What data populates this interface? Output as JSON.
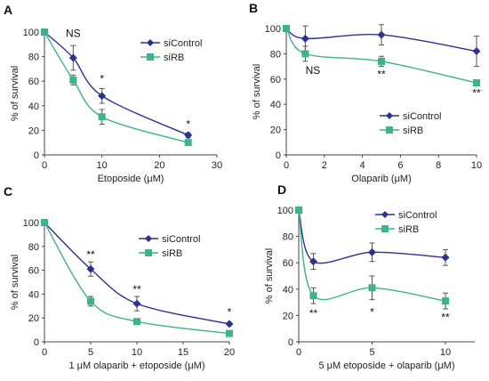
{
  "chart_data": [
    {
      "panel": "A",
      "type": "line",
      "xlabel": "Etoposide (μM)",
      "ylabel": "% of survival",
      "xlim": [
        0,
        30
      ],
      "ylim": [
        0,
        100
      ],
      "xticks": [
        0,
        10,
        20,
        30
      ],
      "yticks": [
        0,
        20,
        40,
        60,
        80,
        100
      ],
      "legend_position": "top-right",
      "series": [
        {
          "name": "siControl",
          "color": "#2e3192",
          "marker": "diamond",
          "x": [
            0,
            5,
            10,
            25
          ],
          "y": [
            100,
            79,
            48,
            16
          ],
          "err": [
            0,
            10,
            6,
            2
          ]
        },
        {
          "name": "siRB",
          "color": "#3cb38a",
          "marker": "square",
          "x": [
            0,
            5,
            10,
            25
          ],
          "y": [
            100,
            61,
            31,
            10
          ],
          "err": [
            0,
            4,
            6,
            1
          ]
        }
      ],
      "annotations": [
        {
          "text": "NS",
          "x": 5,
          "y": 96
        },
        {
          "text": "*",
          "x": 10,
          "y": 59
        },
        {
          "text": "*",
          "x": 25,
          "y": 22
        }
      ]
    },
    {
      "panel": "B",
      "type": "line",
      "xlabel": "Olaparib (μM)",
      "ylabel": "% of survival",
      "xlim": [
        0,
        10
      ],
      "ylim": [
        0,
        100
      ],
      "xticks": [
        0,
        2,
        4,
        6,
        8,
        10
      ],
      "yticks": [
        0,
        20,
        40,
        60,
        80,
        100
      ],
      "legend_position": "bottom-right",
      "series": [
        {
          "name": "siControl",
          "color": "#2e3192",
          "marker": "diamond",
          "x": [
            0,
            1,
            5,
            10
          ],
          "y": [
            100,
            92,
            95,
            82
          ],
          "err": [
            0,
            10,
            8,
            12
          ]
        },
        {
          "name": "siRB",
          "color": "#3cb38a",
          "marker": "square",
          "x": [
            0,
            1,
            5,
            10
          ],
          "y": [
            100,
            80,
            74,
            57
          ],
          "err": [
            0,
            6,
            4,
            2
          ]
        }
      ],
      "annotations": [
        {
          "text": "NS",
          "x": 1.4,
          "y": 64
        },
        {
          "text": "**",
          "x": 5,
          "y": 61
        },
        {
          "text": "**",
          "x": 10,
          "y": 46
        }
      ]
    },
    {
      "panel": "C",
      "type": "line",
      "xlabel": "1 μM olaparib + etoposide (μM)",
      "ylabel": "% of survival",
      "xlim": [
        0,
        20
      ],
      "ylim": [
        0,
        100
      ],
      "xticks": [
        0,
        5,
        10,
        15,
        20
      ],
      "yticks": [
        0,
        20,
        40,
        60,
        80,
        100
      ],
      "legend_position": "top-right",
      "series": [
        {
          "name": "siControl",
          "color": "#2e3192",
          "marker": "diamond",
          "x": [
            0,
            5,
            10,
            20
          ],
          "y": [
            100,
            61,
            32,
            15
          ],
          "err": [
            0,
            6,
            6,
            1
          ]
        },
        {
          "name": "siRB",
          "color": "#3cb38a",
          "marker": "square",
          "x": [
            0,
            5,
            10,
            20
          ],
          "y": [
            100,
            34,
            17,
            7
          ],
          "err": [
            0,
            4,
            2,
            1
          ]
        }
      ],
      "annotations": [
        {
          "text": "**",
          "x": 5,
          "y": 70
        },
        {
          "text": "**",
          "x": 10,
          "y": 41
        },
        {
          "text": "*",
          "x": 20,
          "y": 22
        }
      ]
    },
    {
      "panel": "D",
      "type": "line",
      "xlabel": "5 μM etoposide + olaparib (μM)",
      "ylabel": "% of survival",
      "xlim": [
        0,
        12
      ],
      "ylim": [
        0,
        100
      ],
      "xticks": [
        0,
        5,
        10
      ],
      "yticks": [
        0,
        20,
        40,
        60,
        80,
        100
      ],
      "legend_position": "top-right",
      "series": [
        {
          "name": "siControl",
          "color": "#2e3192",
          "marker": "diamond",
          "x": [
            0,
            1,
            5,
            10
          ],
          "y": [
            100,
            61,
            68,
            64
          ],
          "err": [
            0,
            6,
            7,
            6
          ]
        },
        {
          "name": "siRB",
          "color": "#3cb38a",
          "marker": "square",
          "x": [
            0,
            1,
            5,
            10
          ],
          "y": [
            100,
            35,
            41,
            31
          ],
          "err": [
            0,
            6,
            9,
            6
          ]
        }
      ],
      "annotations": [
        {
          "text": "**",
          "x": 1,
          "y": 19
        },
        {
          "text": "*",
          "x": 5,
          "y": 20
        },
        {
          "text": "**",
          "x": 10,
          "y": 16
        }
      ]
    }
  ]
}
